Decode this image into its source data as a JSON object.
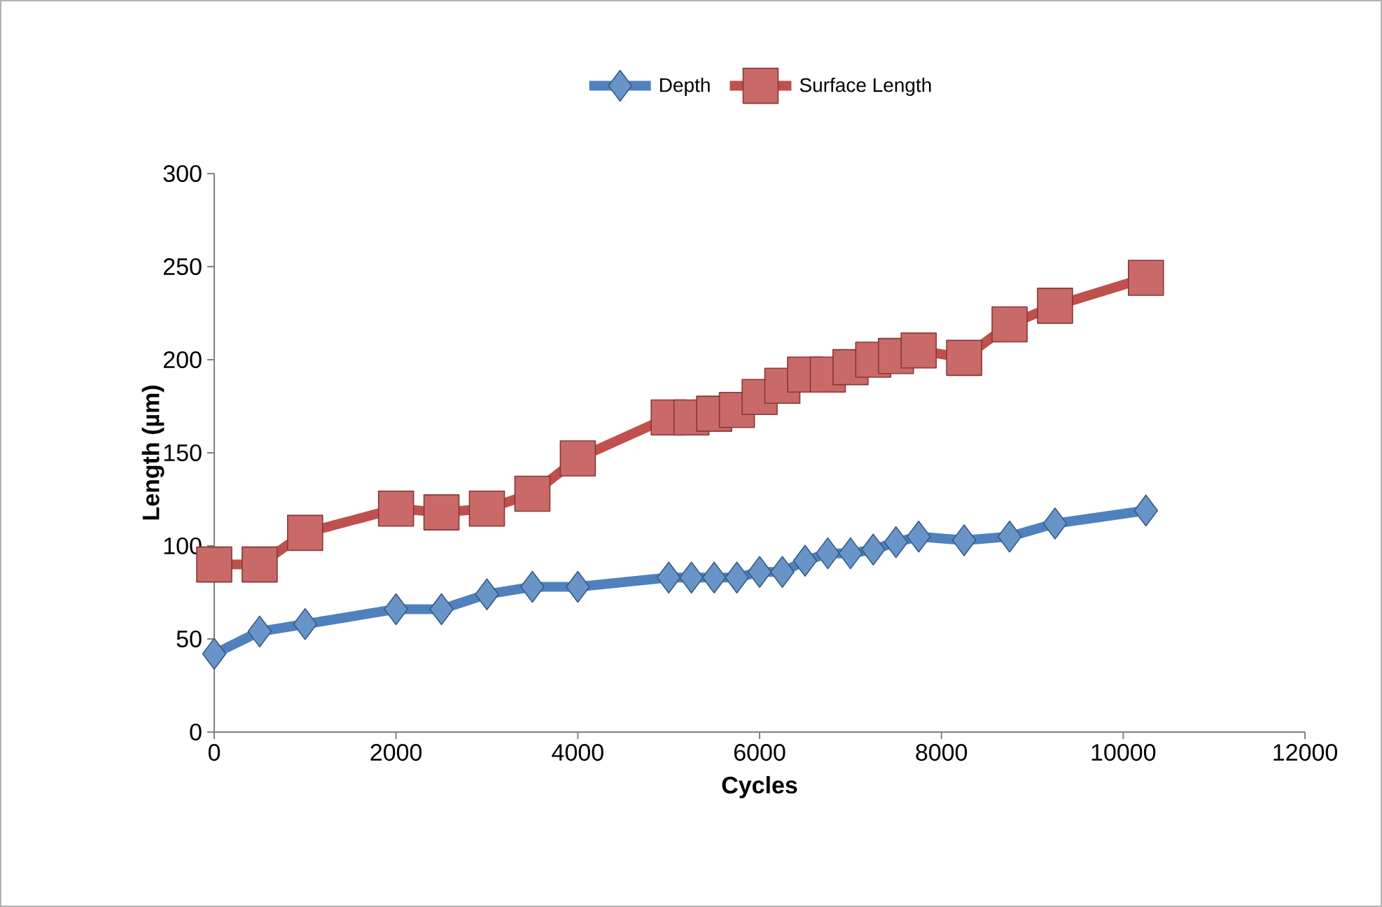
{
  "chart_data": {
    "type": "line",
    "xlabel": "Cycles",
    "ylabel": "Length (µm)",
    "xlim": [
      0,
      12000
    ],
    "xticks": [
      0,
      2000,
      4000,
      6000,
      8000,
      10000,
      12000
    ],
    "ylim": [
      0,
      300
    ],
    "yticks": [
      0,
      50,
      100,
      150,
      200,
      250,
      300
    ],
    "grid": false,
    "legend": "top",
    "line_style": "solid",
    "series": [
      {
        "name": "Depth",
        "color": "#4f81bd",
        "marker": "diamond",
        "x": [
          0,
          500,
          1000,
          2000,
          2500,
          3000,
          3500,
          4000,
          5000,
          5250,
          5500,
          5750,
          6000,
          6250,
          6500,
          6750,
          7000,
          7250,
          7500,
          7750,
          8250,
          8750,
          9250,
          10250
        ],
        "values": [
          42,
          54,
          58,
          66,
          66,
          74,
          78,
          78,
          83,
          83,
          83,
          83,
          86,
          86,
          92,
          96,
          96,
          98,
          102,
          105,
          103,
          105,
          112,
          119
        ]
      },
      {
        "name": "Surface Length",
        "color": "#c0504d",
        "marker": "square",
        "x": [
          0,
          500,
          1000,
          2000,
          2500,
          3000,
          3500,
          4000,
          5000,
          5250,
          5500,
          5750,
          6000,
          6250,
          6500,
          6750,
          7000,
          7250,
          7500,
          7750,
          8250,
          8750,
          9250,
          10250
        ],
        "values": [
          90,
          90,
          107,
          120,
          118,
          120,
          128,
          147,
          169,
          169,
          171,
          173,
          180,
          186,
          192,
          192,
          196,
          200,
          202,
          205,
          201,
          219,
          229,
          244
        ]
      }
    ]
  }
}
